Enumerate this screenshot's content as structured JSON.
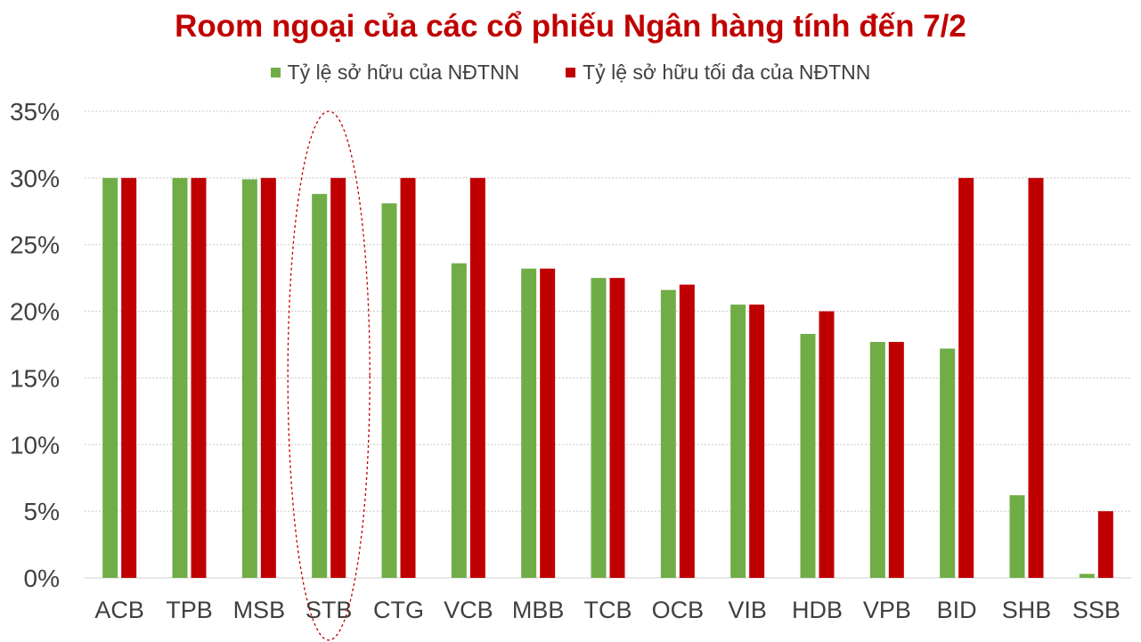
{
  "chart_data": {
    "type": "bar",
    "title": "Room ngoại của các cổ phiếu Ngân hàng tính đến 7/2",
    "categories": [
      "ACB",
      "TPB",
      "MSB",
      "STB",
      "CTG",
      "VCB",
      "MBB",
      "TCB",
      "OCB",
      "VIB",
      "HDB",
      "VPB",
      "BID",
      "SHB",
      "SSB"
    ],
    "series": [
      {
        "name": "Tỷ lệ sở hữu của NĐTNN",
        "color": "#70ad47",
        "values": [
          30.0,
          30.0,
          29.9,
          28.8,
          28.1,
          23.6,
          23.2,
          22.5,
          21.6,
          20.5,
          18.3,
          17.7,
          17.2,
          6.2,
          0.3
        ]
      },
      {
        "name": "Tỷ lệ sở hữu tối đa của NĐTNN",
        "color": "#c00000",
        "values": [
          30.0,
          30.0,
          30.0,
          30.0,
          30.0,
          30.0,
          23.2,
          22.5,
          22.0,
          20.5,
          20.0,
          17.7,
          30.0,
          30.0,
          5.0
        ]
      }
    ],
    "y_ticks": [
      "0%",
      "5%",
      "10%",
      "15%",
      "20%",
      "25%",
      "30%",
      "35%"
    ],
    "ylim": [
      0,
      35
    ],
    "grid": true,
    "legend_position": "top-center",
    "highlight": {
      "category": "STB",
      "shape": "dashed-ellipse",
      "color": "#c00000"
    }
  }
}
